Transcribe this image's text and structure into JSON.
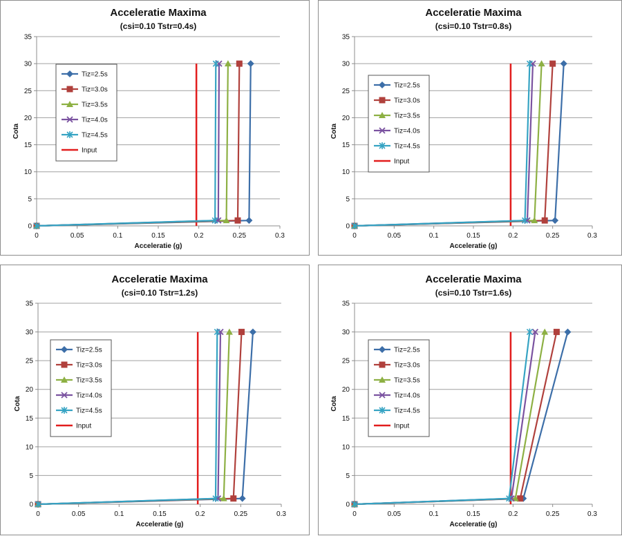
{
  "chart_data": [
    {
      "type": "line",
      "title": "Acceleratie Maxima",
      "subtitle": "(csi=0.10  Tstr=0.4s)",
      "xlabel": "Acceleratie (g)",
      "ylabel": "Cota",
      "xlim": [
        0,
        0.3
      ],
      "ylim": [
        0,
        35
      ],
      "xticks": [
        "0",
        "0.05",
        "0.1",
        "0.15",
        "0.2",
        "0.25",
        "0.3"
      ],
      "yticks": [
        "0",
        "5",
        "10",
        "15",
        "20",
        "25",
        "30",
        "35"
      ],
      "grid": "horizontal",
      "legend_position": "left",
      "series": [
        {
          "name": "Tiz=2.5s",
          "color": "#3c6ea8",
          "marker": "diamond",
          "points": [
            [
              0,
              0
            ],
            [
              0.262,
              1
            ],
            [
              0.264,
              30
            ]
          ]
        },
        {
          "name": "Tiz=3.0s",
          "color": "#b0403c",
          "marker": "square",
          "points": [
            [
              0,
              0
            ],
            [
              0.248,
              1
            ],
            [
              0.25,
              30
            ]
          ]
        },
        {
          "name": "Tiz=3.5s",
          "color": "#8db043",
          "marker": "triangle",
          "points": [
            [
              0,
              0
            ],
            [
              0.234,
              1
            ],
            [
              0.236,
              30
            ]
          ]
        },
        {
          "name": "Tiz=4.0s",
          "color": "#7a52a0",
          "marker": "x",
          "points": [
            [
              0,
              0
            ],
            [
              0.224,
              1
            ],
            [
              0.225,
              30
            ]
          ]
        },
        {
          "name": "Tiz=4.5s",
          "color": "#35a3c3",
          "marker": "star",
          "points": [
            [
              0,
              0
            ],
            [
              0.22,
              1
            ],
            [
              0.221,
              30
            ]
          ]
        },
        {
          "name": "Input",
          "color": "#e21c1c",
          "marker": "none",
          "points": [
            [
              0.197,
              0
            ],
            [
              0.197,
              30
            ]
          ]
        }
      ]
    },
    {
      "type": "line",
      "title": "Acceleratie Maxima",
      "subtitle": "(csi=0.10  Tstr=0.8s)",
      "xlabel": "Acceleratie (g)",
      "ylabel": "Cota",
      "xlim": [
        0,
        0.3
      ],
      "ylim": [
        0,
        35
      ],
      "xticks": [
        "0",
        "0.05",
        "0.1",
        "0.15",
        "0.2",
        "0.25",
        "0.3"
      ],
      "yticks": [
        "0",
        "5",
        "10",
        "15",
        "20",
        "25",
        "30",
        "35"
      ],
      "grid": "horizontal",
      "legend_position": "left",
      "series": [
        {
          "name": "Tiz=2.5s",
          "color": "#3c6ea8",
          "marker": "diamond",
          "points": [
            [
              0,
              0
            ],
            [
              0.253,
              1
            ],
            [
              0.264,
              30
            ]
          ]
        },
        {
          "name": "Tiz=3.0s",
          "color": "#b0403c",
          "marker": "square",
          "points": [
            [
              0,
              0
            ],
            [
              0.24,
              1
            ],
            [
              0.25,
              30
            ]
          ]
        },
        {
          "name": "Tiz=3.5s",
          "color": "#8db043",
          "marker": "triangle",
          "points": [
            [
              0,
              0
            ],
            [
              0.227,
              1
            ],
            [
              0.236,
              30
            ]
          ]
        },
        {
          "name": "Tiz=4.0s",
          "color": "#7a52a0",
          "marker": "x",
          "points": [
            [
              0,
              0
            ],
            [
              0.218,
              1
            ],
            [
              0.225,
              30
            ]
          ]
        },
        {
          "name": "Tiz=4.5s",
          "color": "#35a3c3",
          "marker": "star",
          "points": [
            [
              0,
              0
            ],
            [
              0.215,
              1
            ],
            [
              0.221,
              30
            ]
          ]
        },
        {
          "name": "Input",
          "color": "#e21c1c",
          "marker": "none",
          "points": [
            [
              0.197,
              0
            ],
            [
              0.197,
              30
            ]
          ]
        }
      ]
    },
    {
      "type": "line",
      "title": "Acceleratie Maxima",
      "subtitle": "(csi=0.10  Tstr=1.2s)",
      "xlabel": "Acceleratie (g)",
      "ylabel": "Cota",
      "xlim": [
        0,
        0.3
      ],
      "ylim": [
        0,
        35
      ],
      "xticks": [
        "0",
        "0.05",
        "0.1",
        "0.15",
        "0.2",
        "0.25",
        "0.3"
      ],
      "yticks": [
        "0",
        "5",
        "10",
        "15",
        "20",
        "25",
        "30",
        "35"
      ],
      "grid": "horizontal",
      "legend_position": "left",
      "series": [
        {
          "name": "Tiz=2.5s",
          "color": "#3c6ea8",
          "marker": "diamond",
          "points": [
            [
              0,
              0
            ],
            [
              0.252,
              1
            ],
            [
              0.265,
              30
            ]
          ]
        },
        {
          "name": "Tiz=3.0s",
          "color": "#b0403c",
          "marker": "square",
          "points": [
            [
              0,
              0
            ],
            [
              0.241,
              1
            ],
            [
              0.251,
              30
            ]
          ]
        },
        {
          "name": "Tiz=3.5s",
          "color": "#8db043",
          "marker": "triangle",
          "points": [
            [
              0,
              0
            ],
            [
              0.229,
              1
            ],
            [
              0.236,
              30
            ]
          ]
        },
        {
          "name": "Tiz=4.0s",
          "color": "#7a52a0",
          "marker": "x",
          "points": [
            [
              0,
              0
            ],
            [
              0.222,
              1
            ],
            [
              0.225,
              30
            ]
          ]
        },
        {
          "name": "Tiz=4.5s",
          "color": "#35a3c3",
          "marker": "star",
          "points": [
            [
              0,
              0
            ],
            [
              0.219,
              1
            ],
            [
              0.221,
              30
            ]
          ]
        },
        {
          "name": "Input",
          "color": "#e21c1c",
          "marker": "none",
          "points": [
            [
              0.197,
              0
            ],
            [
              0.197,
              30
            ]
          ]
        }
      ]
    },
    {
      "type": "line",
      "title": "Acceleratie Maxima",
      "subtitle": "(csi=0.10  Tstr=1.6s)",
      "xlabel": "Acceleratie (g)",
      "ylabel": "Cota",
      "xlim": [
        0,
        0.3
      ],
      "ylim": [
        0,
        35
      ],
      "xticks": [
        "0",
        "0.05",
        "0.1",
        "0.15",
        "0.2",
        "0.25",
        "0.3"
      ],
      "yticks": [
        "0",
        "5",
        "10",
        "15",
        "20",
        "25",
        "30",
        "35"
      ],
      "grid": "horizontal",
      "legend_position": "left",
      "series": [
        {
          "name": "Tiz=2.5s",
          "color": "#3c6ea8",
          "marker": "diamond",
          "points": [
            [
              0,
              0
            ],
            [
              0.213,
              1
            ],
            [
              0.269,
              30
            ]
          ]
        },
        {
          "name": "Tiz=3.0s",
          "color": "#b0403c",
          "marker": "square",
          "points": [
            [
              0,
              0
            ],
            [
              0.209,
              1
            ],
            [
              0.255,
              30
            ]
          ]
        },
        {
          "name": "Tiz=3.5s",
          "color": "#8db043",
          "marker": "triangle",
          "points": [
            [
              0,
              0
            ],
            [
              0.203,
              1
            ],
            [
              0.24,
              30
            ]
          ]
        },
        {
          "name": "Tiz=4.0s",
          "color": "#7a52a0",
          "marker": "x",
          "points": [
            [
              0,
              0
            ],
            [
              0.198,
              1
            ],
            [
              0.228,
              30
            ]
          ]
        },
        {
          "name": "Tiz=4.5s",
          "color": "#35a3c3",
          "marker": "star",
          "points": [
            [
              0,
              0
            ],
            [
              0.195,
              1
            ],
            [
              0.221,
              30
            ]
          ]
        },
        {
          "name": "Input",
          "color": "#e21c1c",
          "marker": "none",
          "points": [
            [
              0.197,
              0
            ],
            [
              0.197,
              30
            ]
          ]
        }
      ]
    }
  ]
}
